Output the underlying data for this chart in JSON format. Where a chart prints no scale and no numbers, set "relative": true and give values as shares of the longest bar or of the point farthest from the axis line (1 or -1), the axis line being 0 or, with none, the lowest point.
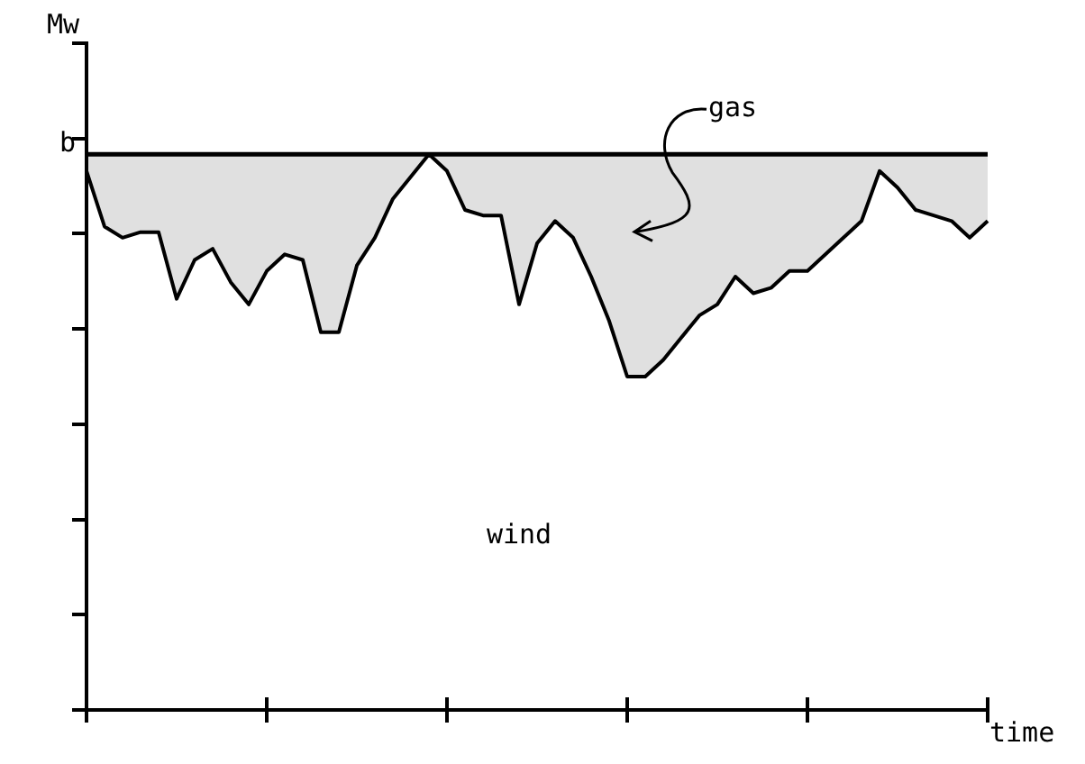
{
  "chart_data": {
    "type": "line",
    "relative": true,
    "ylabel": "Mw",
    "xlabel": "time",
    "categories": [
      null,
      null,
      null,
      null,
      null,
      null,
      null,
      null,
      null,
      null,
      null,
      null,
      null,
      null,
      null,
      null,
      null,
      null,
      null,
      null,
      null,
      null,
      null,
      null,
      null,
      null,
      null,
      null,
      null,
      null,
      null,
      null,
      null,
      null,
      null,
      null,
      null,
      null,
      null,
      null,
      null,
      null,
      null,
      null,
      null,
      null,
      null,
      null,
      null,
      null,
      null
    ],
    "series": [
      {
        "color": "#000000",
        "values": [
          0.97,
          0.87,
          0.85,
          0.86,
          0.86,
          0.74,
          0.81,
          0.83,
          0.77,
          0.73,
          0.79,
          0.82,
          0.81,
          0.68,
          0.68,
          0.8,
          0.85,
          0.92,
          0.96,
          1,
          0.97,
          0.9,
          0.89,
          0.89,
          0.73,
          0.84,
          0.88,
          0.85,
          0.78,
          0.7,
          0.6,
          0.6,
          0.63,
          0.67,
          0.71,
          0.73,
          0.78,
          0.75,
          0.76,
          0.79,
          0.79,
          0.82,
          0.85,
          0.88,
          0.97,
          0.94,
          0.9,
          0.89,
          0.88,
          0.85,
          0.88
        ]
      }
    ],
    "ref_lines": [
      {
        "axis": "y",
        "value": 1,
        "label": "b"
      }
    ],
    "annotations": [
      "gas",
      "wind"
    ],
    "legend": false,
    "marker": "none",
    "line_style": "solid"
  }
}
